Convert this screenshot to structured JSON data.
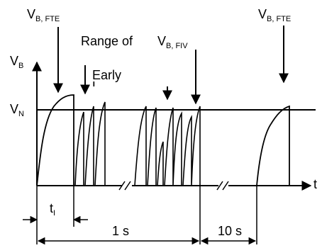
{
  "labels": {
    "v_b_fte_left": {
      "main": "V",
      "sub": "B, FTE"
    },
    "v_b_fte_right": {
      "main": "V",
      "sub": "B, FTE"
    },
    "range_of": "Range of",
    "v_b_fiv": {
      "main": "V",
      "sub": "B, FIV"
    },
    "early": "Early",
    "early_cut": "L",
    "y_axis": {
      "main": "V",
      "sub": "B"
    },
    "v_n": {
      "main": "V",
      "sub": "N"
    },
    "t_axis": "t",
    "t_i": {
      "main": "t",
      "sub": "I"
    },
    "one_s": "1 s",
    "ten_s": "10 s"
  }
}
